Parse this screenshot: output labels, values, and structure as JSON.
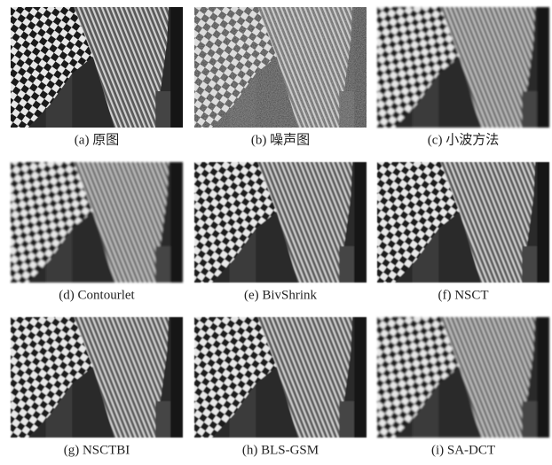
{
  "figure": {
    "panels": [
      {
        "caption": "(a) 原图"
      },
      {
        "caption": "(b) 噪声图"
      },
      {
        "caption": "(c) 小波方法"
      },
      {
        "caption": "(d) Contourlet"
      },
      {
        "caption": "(e) BivShrink"
      },
      {
        "caption": "(f) NSCT"
      },
      {
        "caption": "(g) NSCTBI"
      },
      {
        "caption": "(h) BLS-GSM"
      },
      {
        "caption": "(i) SA-DCT"
      }
    ]
  }
}
